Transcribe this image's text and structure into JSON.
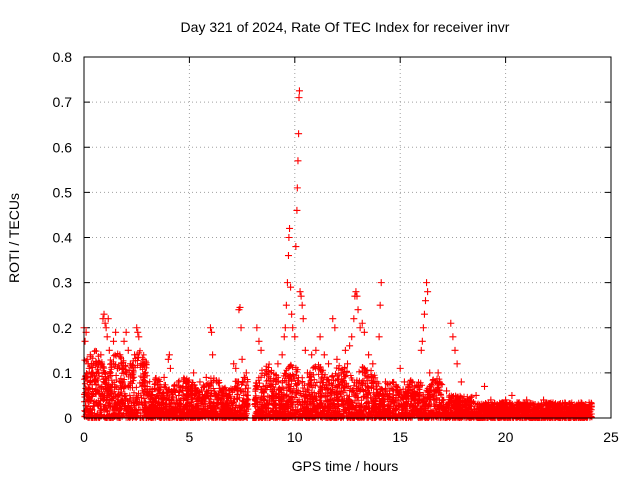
{
  "chart_data": {
    "type": "scatter",
    "title": "Day 321 of 2024, Rate Of TEC Index for receiver invr",
    "xlabel": "GPS time / hours",
    "ylabel": "ROTI / TECUs",
    "xlim": [
      0,
      25
    ],
    "ylim": [
      0,
      0.8
    ],
    "x_ticks": [
      0,
      5,
      10,
      15,
      20,
      25
    ],
    "y_ticks": [
      0,
      0.1,
      0.2,
      0.3,
      0.4,
      0.5,
      0.6,
      0.7,
      0.8
    ],
    "x_tick_labels": [
      "0",
      "5",
      "10",
      "15",
      "20",
      "25"
    ],
    "y_tick_labels": [
      "0",
      "0.1",
      "0.2",
      "0.3",
      "0.4",
      "0.5",
      "0.6",
      "0.7",
      "0.8"
    ],
    "grid": true,
    "marker": "+",
    "color": "#ff0000",
    "series": [
      {
        "name": "ROTI",
        "points": [
          [
            0.0,
            0.2
          ],
          [
            0.05,
            0.17
          ],
          [
            0.1,
            0.19
          ],
          [
            0.15,
            0.13
          ],
          [
            0.2,
            0.12
          ],
          [
            0.25,
            0.11
          ],
          [
            0.3,
            0.14
          ],
          [
            0.35,
            0.12
          ],
          [
            0.4,
            0.1
          ],
          [
            0.5,
            0.08
          ],
          [
            0.6,
            0.12
          ],
          [
            0.7,
            0.1
          ],
          [
            0.8,
            0.14
          ],
          [
            0.9,
            0.22
          ],
          [
            0.95,
            0.23
          ],
          [
            1.0,
            0.21
          ],
          [
            1.05,
            0.2
          ],
          [
            1.1,
            0.18
          ],
          [
            1.15,
            0.22
          ],
          [
            1.2,
            0.15
          ],
          [
            1.3,
            0.12
          ],
          [
            1.4,
            0.17
          ],
          [
            1.5,
            0.19
          ],
          [
            1.6,
            0.11
          ],
          [
            1.7,
            0.14
          ],
          [
            1.8,
            0.12
          ],
          [
            1.9,
            0.17
          ],
          [
            2.0,
            0.19
          ],
          [
            2.1,
            0.15
          ],
          [
            2.2,
            0.12
          ],
          [
            2.3,
            0.1
          ],
          [
            2.4,
            0.14
          ],
          [
            2.5,
            0.2
          ],
          [
            2.55,
            0.19
          ],
          [
            2.6,
            0.18
          ],
          [
            2.7,
            0.12
          ],
          [
            2.8,
            0.09
          ],
          [
            3.0,
            0.07
          ],
          [
            3.2,
            0.05
          ],
          [
            3.5,
            0.06
          ],
          [
            3.8,
            0.09
          ],
          [
            4.0,
            0.13
          ],
          [
            4.05,
            0.14
          ],
          [
            4.1,
            0.11
          ],
          [
            4.3,
            0.06
          ],
          [
            4.5,
            0.05
          ],
          [
            4.7,
            0.07
          ],
          [
            4.9,
            0.08
          ],
          [
            5.2,
            0.1
          ],
          [
            5.5,
            0.08
          ],
          [
            5.8,
            0.09
          ],
          [
            6.0,
            0.2
          ],
          [
            6.05,
            0.19
          ],
          [
            6.1,
            0.14
          ],
          [
            6.3,
            0.08
          ],
          [
            6.6,
            0.05
          ],
          [
            6.9,
            0.06
          ],
          [
            7.1,
            0.12
          ],
          [
            7.2,
            0.11
          ],
          [
            7.35,
            0.24
          ],
          [
            7.4,
            0.245
          ],
          [
            7.45,
            0.2
          ],
          [
            7.5,
            0.13
          ],
          [
            7.6,
            0.09
          ],
          [
            7.7,
            0.1
          ],
          [
            8.1,
            0.03
          ],
          [
            8.2,
            0.2
          ],
          [
            8.3,
            0.17
          ],
          [
            8.4,
            0.15
          ],
          [
            8.5,
            0.07
          ],
          [
            8.8,
            0.04
          ],
          [
            9.0,
            0.05
          ],
          [
            9.2,
            0.12
          ],
          [
            9.4,
            0.14
          ],
          [
            9.5,
            0.18
          ],
          [
            9.55,
            0.2
          ],
          [
            9.6,
            0.25
          ],
          [
            9.65,
            0.3
          ],
          [
            9.7,
            0.36
          ],
          [
            9.72,
            0.4
          ],
          [
            9.75,
            0.42
          ],
          [
            9.8,
            0.29
          ],
          [
            9.85,
            0.23
          ],
          [
            9.9,
            0.2
          ],
          [
            10.0,
            0.18
          ],
          [
            10.05,
            0.38
          ],
          [
            10.1,
            0.46
          ],
          [
            10.12,
            0.51
          ],
          [
            10.15,
            0.57
          ],
          [
            10.18,
            0.63
          ],
          [
            10.2,
            0.71
          ],
          [
            10.22,
            0.725
          ],
          [
            10.25,
            0.28
          ],
          [
            10.3,
            0.27
          ],
          [
            10.35,
            0.25
          ],
          [
            10.4,
            0.22
          ],
          [
            10.5,
            0.15
          ],
          [
            10.6,
            0.1
          ],
          [
            10.8,
            0.14
          ],
          [
            11.0,
            0.15
          ],
          [
            11.2,
            0.18
          ],
          [
            11.4,
            0.14
          ],
          [
            11.6,
            0.12
          ],
          [
            11.8,
            0.22
          ],
          [
            11.9,
            0.2
          ],
          [
            12.0,
            0.13
          ],
          [
            12.2,
            0.1
          ],
          [
            12.4,
            0.15
          ],
          [
            12.5,
            0.12
          ],
          [
            12.6,
            0.16
          ],
          [
            12.7,
            0.18
          ],
          [
            12.8,
            0.22
          ],
          [
            12.85,
            0.27
          ],
          [
            12.9,
            0.28
          ],
          [
            12.95,
            0.27
          ],
          [
            13.0,
            0.24
          ],
          [
            13.1,
            0.2
          ],
          [
            13.2,
            0.21
          ],
          [
            13.3,
            0.19
          ],
          [
            13.5,
            0.14
          ],
          [
            13.7,
            0.12
          ],
          [
            13.9,
            0.08
          ],
          [
            14.0,
            0.18
          ],
          [
            14.05,
            0.25
          ],
          [
            14.1,
            0.3
          ],
          [
            14.3,
            0.08
          ],
          [
            14.5,
            0.06
          ],
          [
            14.8,
            0.05
          ],
          [
            15.0,
            0.11
          ],
          [
            15.2,
            0.08
          ],
          [
            15.5,
            0.05
          ],
          [
            15.8,
            0.05
          ],
          [
            16.0,
            0.15
          ],
          [
            16.05,
            0.17
          ],
          [
            16.1,
            0.2
          ],
          [
            16.15,
            0.23
          ],
          [
            16.2,
            0.26
          ],
          [
            16.25,
            0.3
          ],
          [
            16.3,
            0.28
          ],
          [
            16.4,
            0.1
          ],
          [
            16.6,
            0.06
          ],
          [
            16.8,
            0.1
          ],
          [
            17.0,
            0.04
          ],
          [
            17.2,
            0.06
          ],
          [
            17.4,
            0.21
          ],
          [
            17.5,
            0.18
          ],
          [
            17.6,
            0.15
          ],
          [
            17.7,
            0.12
          ],
          [
            17.9,
            0.08
          ],
          [
            18.2,
            0.04
          ],
          [
            18.6,
            0.05
          ],
          [
            19.0,
            0.07
          ],
          [
            19.3,
            0.04
          ],
          [
            19.6,
            0.03
          ],
          [
            20.0,
            0.04
          ],
          [
            20.3,
            0.05
          ],
          [
            20.6,
            0.03
          ],
          [
            21.0,
            0.04
          ],
          [
            21.4,
            0.03
          ],
          [
            21.8,
            0.04
          ],
          [
            22.2,
            0.03
          ],
          [
            22.6,
            0.02
          ],
          [
            23.0,
            0.03
          ],
          [
            23.4,
            0.02
          ],
          [
            23.8,
            0.03
          ],
          [
            24.0,
            0.02
          ]
        ]
      }
    ]
  }
}
